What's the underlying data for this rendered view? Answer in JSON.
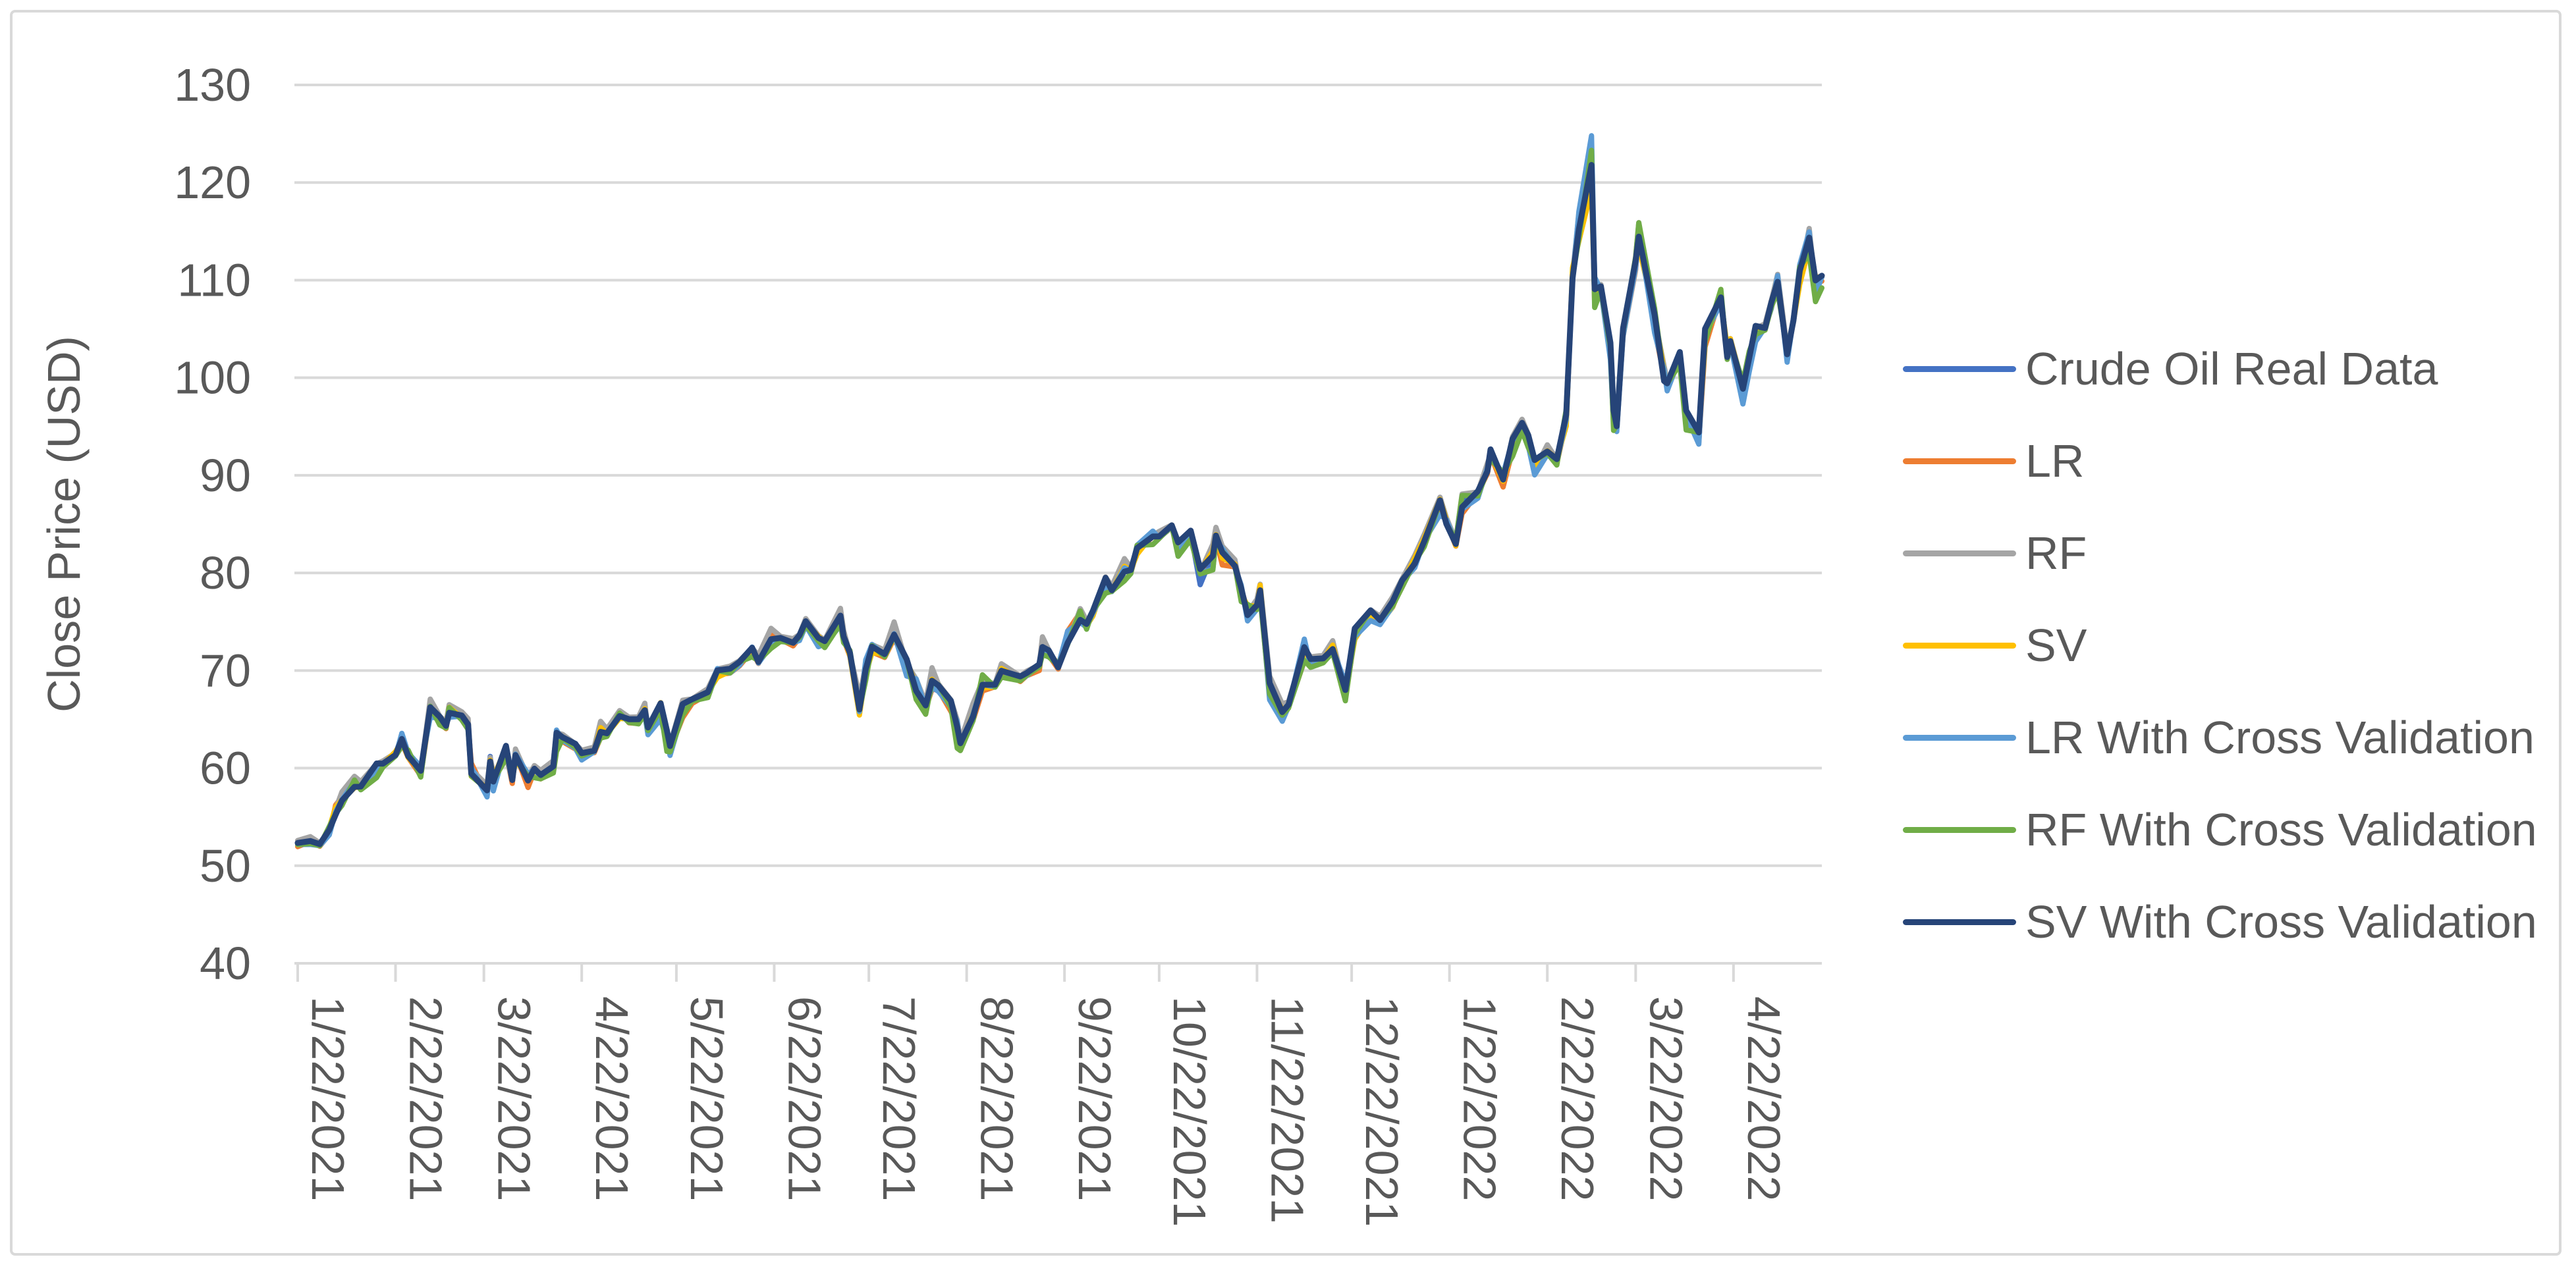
{
  "chart": {
    "background_color": "#FFFFFF",
    "border_color": "#D9D9D9",
    "gridline_color": "#D9D9D9",
    "axis_line_color": "#D9D9D9",
    "text_color": "#595959"
  },
  "y_axis": {
    "title": "Close Price (USD)",
    "min": 40,
    "max": 130,
    "step": 10,
    "tick_labels": [
      "40",
      "50",
      "60",
      "70",
      "80",
      "90",
      "100",
      "110",
      "120",
      "130"
    ]
  },
  "x_axis": {
    "tick_labels": [
      "1/22/2021",
      "2/22/2021",
      "3/22/2021",
      "4/22/2021",
      "5/22/2021",
      "6/22/2021",
      "7/22/2021",
      "8/22/2021",
      "9/22/2021",
      "10/22/2021",
      "11/22/2021",
      "12/22/2021",
      "1/22/2022",
      "2/22/2022",
      "3/22/2022",
      "4/22/2022"
    ]
  },
  "legend": {
    "position": "right",
    "items": [
      {
        "label": "Crude Oil Real Data",
        "color": "#4472C4"
      },
      {
        "label": "LR",
        "color": "#ED7D31"
      },
      {
        "label": "RF",
        "color": "#A5A5A5"
      },
      {
        "label": "SV",
        "color": "#FFC000"
      },
      {
        "label": "LR With Cross Validation",
        "color": "#5B9BD5"
      },
      {
        "label": "RF With Cross Validation",
        "color": "#70AD47"
      },
      {
        "label": "SV With Cross Validation",
        "color": "#264478"
      }
    ]
  },
  "chart_data": {
    "type": "line",
    "title": "",
    "xlabel": "",
    "ylabel": "Close Price (USD)",
    "ylim": [
      40,
      130
    ],
    "grid": true,
    "legend_position": "right",
    "x_tick_labels": [
      "1/22/2021",
      "2/22/2021",
      "3/22/2021",
      "4/22/2021",
      "5/22/2021",
      "6/22/2021",
      "7/22/2021",
      "8/22/2021",
      "9/22/2021",
      "10/22/2021",
      "11/22/2021",
      "12/22/2021",
      "1/22/2022",
      "2/22/2022",
      "3/22/2022",
      "4/22/2022"
    ],
    "x_tick_days": [
      0,
      31,
      59,
      90,
      120,
      151,
      181,
      212,
      243,
      273,
      304,
      334,
      365,
      396,
      424,
      455
    ],
    "x_total_days": 483,
    "x_days": [
      0,
      4,
      7,
      10,
      12,
      14,
      18,
      20,
      25,
      27,
      31,
      33,
      35,
      39,
      42,
      45,
      47,
      48,
      52,
      54,
      55,
      60,
      61,
      62,
      66,
      68,
      69,
      73,
      75,
      77,
      81,
      82,
      84,
      88,
      90,
      94,
      96,
      98,
      102,
      105,
      108,
      110,
      111,
      115,
      117,
      118,
      122,
      125,
      130,
      133,
      137,
      140,
      144,
      146,
      150,
      153,
      157,
      159,
      161,
      165,
      167,
      172,
      173,
      175,
      178,
      180,
      182,
      186,
      189,
      193,
      196,
      199,
      201,
      203,
      207,
      209,
      210,
      214,
      217,
      221,
      223,
      229,
      231,
      235,
      236,
      238,
      241,
      244,
      248,
      250,
      252,
      256,
      258,
      262,
      264,
      266,
      271,
      273,
      277,
      279,
      283,
      286,
      290,
      291,
      293,
      297,
      299,
      301,
      304,
      305,
      308,
      312,
      314,
      319,
      321,
      325,
      328,
      332,
      335,
      340,
      343,
      347,
      350,
      354,
      357,
      362,
      364,
      367,
      369,
      374,
      377,
      378,
      382,
      385,
      388,
      390,
      392,
      396,
      399,
      402,
      404,
      406,
      410,
      411,
      413,
      416,
      417,
      418,
      420,
      424,
      425,
      430,
      433,
      434,
      438,
      440,
      444,
      446,
      451,
      453,
      454,
      458,
      460,
      462,
      465,
      467,
      469,
      472,
      474,
      476,
      479,
      481,
      483
    ],
    "series": [
      {
        "name": "Crude Oil Real Data",
        "color": "#4472C4",
        "width": 8,
        "values": [
          52.3,
          52.6,
          52.2,
          53.6,
          55.7,
          56.9,
          58.4,
          58.2,
          60.1,
          60.5,
          61.5,
          63.2,
          61.5,
          59.7,
          66.1,
          65.1,
          64.4,
          66.0,
          65.4,
          64.6,
          60.0,
          57.8,
          61.2,
          58.6,
          61.6,
          59.2,
          61.5,
          58.7,
          59.8,
          59.3,
          60.2,
          63.2,
          63.1,
          62.4,
          61.4,
          61.9,
          63.9,
          63.6,
          65.7,
          64.9,
          64.9,
          66.1,
          63.8,
          66.3,
          63.4,
          62.1,
          66.1,
          66.9,
          67.7,
          69.6,
          70.1,
          70.9,
          72.1,
          71.0,
          73.7,
          73.3,
          72.9,
          73.5,
          75.2,
          73.4,
          72.9,
          75.3,
          73.1,
          71.8,
          66.4,
          70.3,
          72.1,
          71.7,
          74.0,
          70.6,
          68.3,
          66.5,
          69.3,
          68.4,
          66.6,
          63.7,
          62.3,
          65.6,
          68.7,
          68.5,
          70.0,
          69.3,
          69.7,
          70.5,
          72.6,
          72.0,
          70.3,
          73.3,
          75.5,
          74.8,
          75.9,
          78.9,
          78.3,
          80.5,
          80.4,
          82.3,
          83.9,
          83.8,
          84.7,
          82.8,
          84.1,
          78.8,
          81.9,
          84.2,
          81.6,
          80.9,
          78.4,
          76.1,
          76.8,
          78.5,
          68.2,
          66.2,
          66.5,
          72.1,
          70.9,
          71.3,
          72.4,
          68.2,
          73.8,
          76.0,
          75.2,
          77.0,
          78.9,
          81.2,
          83.8,
          87.0,
          85.1,
          83.3,
          87.4,
          88.2,
          90.3,
          92.3,
          89.4,
          93.1,
          95.5,
          93.7,
          91.1,
          92.4,
          91.6,
          95.7,
          110.6,
          115.7,
          123.7,
          108.7,
          109.3,
          103.0,
          96.4,
          95.0,
          104.7,
          111.8,
          114.9,
          106.0,
          100.3,
          99.3,
          102.0,
          96.0,
          94.3,
          104.3,
          108.2,
          102.8,
          103.8,
          98.5,
          102.0,
          104.7,
          105.2,
          107.8,
          109.8,
          103.1,
          105.7,
          110.5,
          114.2,
          109.6,
          110.3
        ]
      },
      {
        "name": "LR",
        "color": "#ED7D31",
        "width": 8,
        "derived_from": "Crude Oil Real Data",
        "bias": -0.25,
        "amp": 0.6,
        "seed": 7,
        "overrides": {
          "286": 80.1,
          "308": 67.2,
          "312": 65.0,
          "332": 67.2,
          "410": 122.3,
          "411": 107.6,
          "444": 93.4
        }
      },
      {
        "name": "RF",
        "color": "#A5A5A5",
        "width": 8,
        "derived_from": "Crude Oil Real Data",
        "bias": 0.3,
        "amp": 0.55,
        "seed": 13,
        "overrides": {
          "286": 80.1,
          "410": 122.7
        }
      },
      {
        "name": "SV",
        "color": "#FFC000",
        "width": 8,
        "derived_from": "Crude Oil Real Data",
        "bias": -0.1,
        "amp": 0.5,
        "seed": 23,
        "overrides": {
          "286": 80.2,
          "406": 114.0,
          "410": 119.3,
          "411": 108.3,
          "425": 113.5
        }
      },
      {
        "name": "LR With Cross Validation",
        "color": "#5B9BD5",
        "width": 8,
        "derived_from": "Crude Oil Real Data",
        "bias": -0.2,
        "amp": 0.75,
        "seed": 31,
        "overrides": {
          "118": 61.3,
          "286": 80.0,
          "308": 67.0,
          "312": 64.8,
          "406": 117.0,
          "410": 124.8,
          "411": 110.3,
          "417": 95.3,
          "444": 93.2
        }
      },
      {
        "name": "RF With Cross Validation",
        "color": "#70AD47",
        "width": 8,
        "derived_from": "Crude Oil Real Data",
        "bias": -0.3,
        "amp": 0.85,
        "seed": 41,
        "overrides": {
          "55": 59.2,
          "210": 61.8,
          "286": 79.9,
          "308": 67.6,
          "332": 66.9,
          "410": 123.3,
          "417": 94.6,
          "481": 107.8,
          "483": 109.2
        }
      },
      {
        "name": "SV With Cross Validation",
        "color": "#264478",
        "width": 9,
        "derived_from": "Crude Oil Real Data",
        "bias": 0,
        "amp": 0.4,
        "seed": 5,
        "overrides": {
          "286": 80.4,
          "404": 110.2,
          "406": 115.2,
          "410": 121.8
        }
      }
    ],
    "note": "Daily crude-oil close prices from 1/22/2021 to ~5/20/2022. The six model-prediction series visually overlap the real-data line within about ±1.5 USD; they are encoded as the base series plus a small per-series bias, volatility-scaled noise, and explicit override values (keyed by day offset from 1/22/2021) at the points where individual colors visibly diverge, e.g. the 3/8/2022 spike where LR-CV reaches ~124.8 and SV-CV ~121.8 versus real data 123.7."
  }
}
